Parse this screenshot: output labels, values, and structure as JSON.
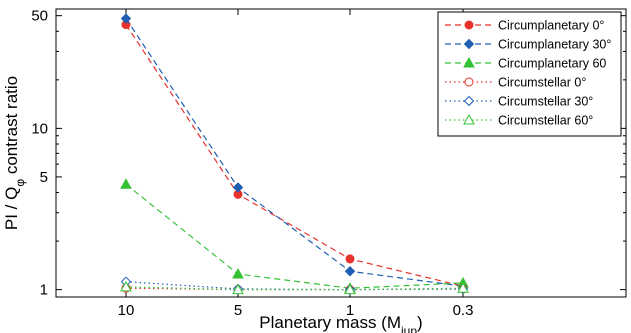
{
  "chart_data": {
    "type": "line",
    "categories": [
      "10",
      "5",
      "1",
      "0.3"
    ],
    "xlabel": "Planetary mass (M_jup)",
    "xlabel_main": "Planetary mass (M",
    "xlabel_sub": "jup",
    "xlabel_close": ")",
    "ylabel": "PI / Q_φ contrast ratio",
    "ylabel_main": "PI / Q",
    "ylabel_sub": "φ",
    "ylabel_rest": " contrast ratio",
    "yscale": "log",
    "ylim": [
      0.9,
      55
    ],
    "yticks": [
      1,
      5,
      10,
      50
    ],
    "ytick_labels": [
      "1",
      "5",
      "10",
      "50"
    ],
    "grid": false,
    "legend_position": "top-right",
    "series": [
      {
        "name": "Circumplanetary 0°",
        "values": [
          44,
          3.9,
          1.55,
          1.05
        ],
        "color": "#e8322b",
        "dash": "dashed",
        "marker": "circle",
        "filled": true
      },
      {
        "name": "Circumplanetary 30°",
        "values": [
          48,
          4.3,
          1.3,
          1.05
        ],
        "color": "#1f5fb3",
        "dash": "dashed",
        "marker": "diamond",
        "filled": true
      },
      {
        "name": "Circumplanetary 60",
        "values": [
          4.5,
          1.25,
          1.02,
          1.1
        ],
        "color": "#34c234",
        "dash": "dashed",
        "marker": "triangle",
        "filled": true
      },
      {
        "name": "Circumstellar 0°",
        "values": [
          1.02,
          1.0,
          1.0,
          1.01
        ],
        "color": "#e8322b",
        "dash": "dotted",
        "marker": "circle",
        "filled": false
      },
      {
        "name": "Circumstellar 30°",
        "values": [
          1.12,
          1.01,
          1.0,
          1.01
        ],
        "color": "#1f5fb3",
        "dash": "dotted",
        "marker": "diamond",
        "filled": false
      },
      {
        "name": "Circumstellar 60°",
        "values": [
          1.04,
          1.0,
          1.0,
          1.02
        ],
        "color": "#34c234",
        "dash": "dotted",
        "marker": "triangle",
        "filled": false
      }
    ]
  }
}
